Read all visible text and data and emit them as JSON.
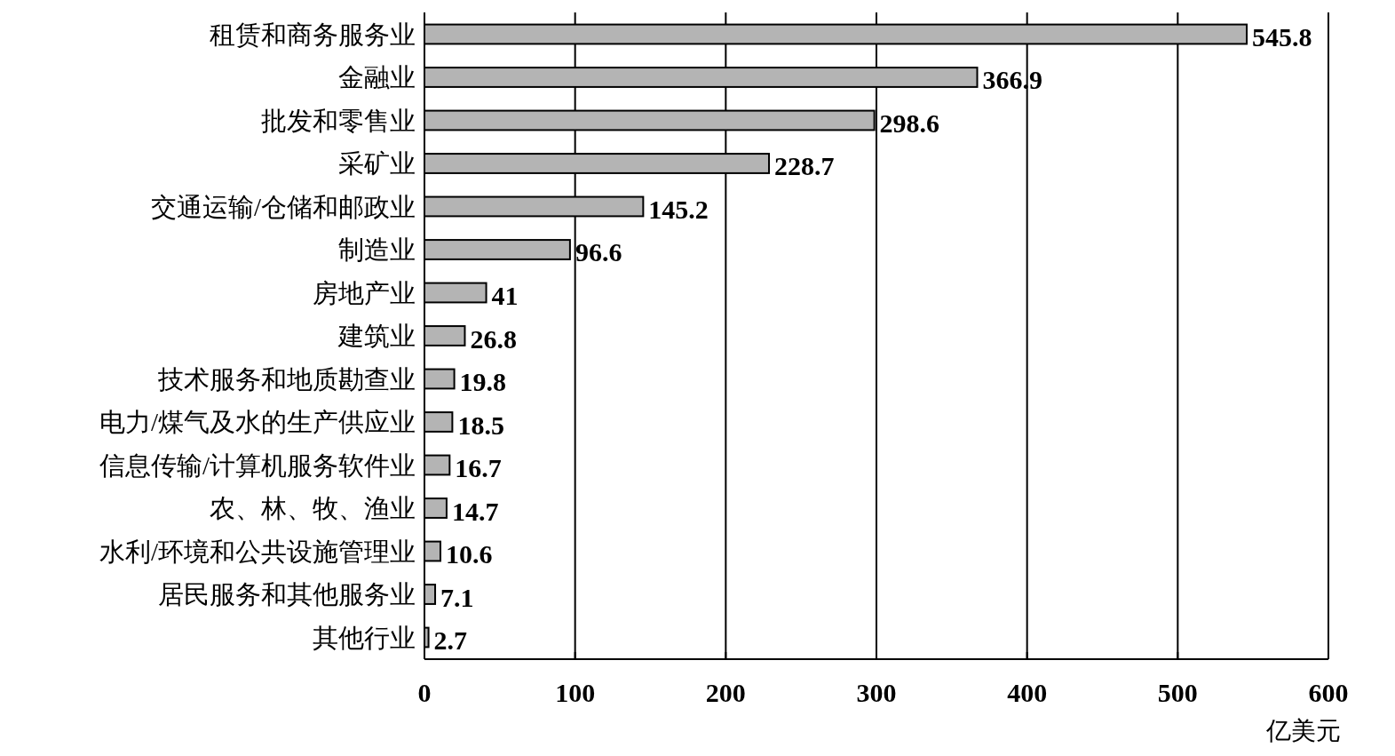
{
  "chart_data": {
    "type": "bar",
    "orientation": "horizontal",
    "xlabel": "亿美元",
    "categories": [
      "租赁和商务服务业",
      "金融业",
      "批发和零售业",
      "采矿业",
      "交通运输/仓储和邮政业",
      "制造业",
      "房地产业",
      "建筑业",
      "技术服务和地质勘查业",
      "电力/煤气及水的生产供应业",
      "信息传输/计算机服务软件业",
      "农、林、牧、渔业",
      "水利/环境和公共设施管理业",
      "居民服务和其他服务业",
      "其他行业"
    ],
    "values": [
      545.8,
      366.9,
      298.6,
      228.7,
      145.2,
      96.6,
      41,
      26.8,
      19.8,
      18.5,
      16.7,
      14.7,
      10.6,
      7.1,
      2.7
    ],
    "color": "#b4b4b4",
    "xlim": [
      0,
      600
    ],
    "xticks": [
      0,
      100,
      200,
      300,
      400,
      500,
      600
    ],
    "grid": "x",
    "data_labels": true
  }
}
